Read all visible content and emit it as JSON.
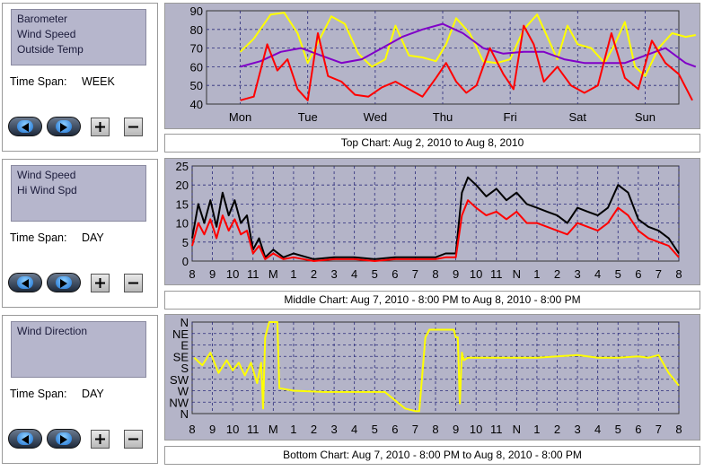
{
  "panels": [
    {
      "series": [
        "Barometer",
        "Wind Speed",
        "Outside Temp"
      ],
      "time_span_label": "Time Span:",
      "time_span_value": "WEEK"
    },
    {
      "series": [
        "Wind Speed",
        "Hi Wind Spd"
      ],
      "time_span_label": "Time Span:",
      "time_span_value": "DAY"
    },
    {
      "series": [
        "Wind Direction"
      ],
      "time_span_label": "Time Span:",
      "time_span_value": "DAY"
    }
  ],
  "captions": {
    "top": "Top Chart:  Aug 2, 2010  to  Aug 8, 2010",
    "middle": "Middle Chart:  Aug 7, 2010 - 8:00 PM  to  Aug 8, 2010 - 8:00 PM",
    "bottom": "Bottom Chart:  Aug 7, 2010 - 8:00 PM  to  Aug 8, 2010 - 8:00 PM"
  },
  "colors": {
    "chart_bg": "#b4b4c8",
    "grid": "#2a2a7a",
    "red": "#ff0000",
    "purple": "#8000c8",
    "yellow": "#ffff00",
    "black": "#000000"
  },
  "chart_data": [
    {
      "type": "line",
      "x_tick_labels": [
        "Mon",
        "Tue",
        "Wed",
        "Thu",
        "Fri",
        "Sat",
        "Sun"
      ],
      "y_ticks": [
        40,
        50,
        60,
        70,
        80,
        90
      ],
      "ylim": [
        40,
        90
      ],
      "grid": true,
      "series": [
        {
          "color": "#ffff00",
          "x": [
            0,
            0.2,
            0.45,
            0.65,
            0.85,
            1.0,
            1.15,
            1.35,
            1.55,
            1.75,
            1.95,
            2.15,
            2.3,
            2.5,
            2.7,
            2.9,
            3.05,
            3.2,
            3.4,
            3.6,
            3.8,
            4.0,
            4.2,
            4.4,
            4.55,
            4.7,
            4.85,
            5.0,
            5.2,
            5.4,
            5.55,
            5.7,
            5.85,
            6.0,
            6.2,
            6.4,
            6.6,
            6.75
          ],
          "y": [
            68,
            75,
            88,
            89,
            78,
            62,
            73,
            87,
            83,
            67,
            60,
            64,
            82,
            66,
            65,
            63,
            72,
            86,
            78,
            63,
            62,
            64,
            80,
            88,
            76,
            64,
            82,
            72,
            70,
            62,
            72,
            84,
            60,
            55,
            70,
            78,
            76,
            77
          ]
        },
        {
          "color": "#8000c8",
          "x": [
            0,
            0.3,
            0.6,
            0.9,
            1.2,
            1.5,
            1.8,
            2.1,
            2.4,
            2.7,
            3.0,
            3.3,
            3.6,
            3.9,
            4.2,
            4.5,
            4.8,
            5.1,
            5.4,
            5.7,
            6.0,
            6.3,
            6.6,
            6.75
          ],
          "y": [
            60,
            63,
            68,
            70,
            66,
            62,
            64,
            70,
            76,
            80,
            83,
            78,
            70,
            67,
            68,
            68,
            64,
            62,
            62,
            62,
            66,
            70,
            62,
            60
          ]
        },
        {
          "color": "#ff0000",
          "x": [
            0,
            0.2,
            0.4,
            0.55,
            0.7,
            0.85,
            1.0,
            1.15,
            1.3,
            1.5,
            1.7,
            1.9,
            2.1,
            2.3,
            2.5,
            2.7,
            2.9,
            3.05,
            3.2,
            3.35,
            3.5,
            3.7,
            3.9,
            4.05,
            4.2,
            4.35,
            4.5,
            4.7,
            4.9,
            5.1,
            5.3,
            5.5,
            5.7,
            5.9,
            6.1,
            6.3,
            6.5,
            6.7
          ],
          "y": [
            42,
            44,
            72,
            58,
            64,
            48,
            42,
            78,
            55,
            52,
            45,
            44,
            49,
            52,
            48,
            44,
            54,
            62,
            52,
            46,
            50,
            70,
            56,
            48,
            82,
            72,
            52,
            60,
            50,
            46,
            50,
            78,
            54,
            48,
            74,
            62,
            56,
            42
          ]
        }
      ]
    },
    {
      "type": "line",
      "x_tick_labels": [
        "8",
        "9",
        "10",
        "11",
        "M",
        "1",
        "2",
        "3",
        "4",
        "5",
        "6",
        "7",
        "8",
        "9",
        "10",
        "11",
        "N",
        "1",
        "2",
        "3",
        "4",
        "5",
        "6",
        "7",
        "8"
      ],
      "y_ticks": [
        0,
        5,
        10,
        15,
        20,
        25
      ],
      "ylim": [
        0,
        25
      ],
      "grid": true,
      "series": [
        {
          "color": "#000000",
          "x": [
            0,
            0.3,
            0.6,
            0.9,
            1.2,
            1.5,
            1.8,
            2.1,
            2.4,
            2.7,
            3.0,
            3.3,
            3.6,
            4,
            4.5,
            5,
            6,
            7,
            8,
            9,
            10,
            11,
            12,
            12.5,
            13,
            13.3,
            13.6,
            14,
            14.5,
            15,
            15.5,
            16,
            16.5,
            17,
            17.5,
            18,
            18.5,
            19,
            19.5,
            20,
            20.5,
            21,
            21.5,
            22,
            22.5,
            23,
            23.5,
            24
          ],
          "y": [
            6,
            15,
            10,
            16,
            9,
            18,
            12,
            16,
            10,
            12,
            3,
            6,
            1,
            3,
            1,
            2,
            0.5,
            1,
            1,
            0.5,
            1,
            1,
            1,
            2,
            2,
            18,
            22,
            20,
            17,
            19,
            16,
            18,
            15,
            14,
            13,
            12,
            10,
            14,
            13,
            12,
            14,
            20,
            18,
            11,
            9,
            8,
            6,
            2
          ]
        },
        {
          "color": "#ff0000",
          "x": [
            0,
            0.3,
            0.6,
            0.9,
            1.2,
            1.5,
            1.8,
            2.1,
            2.4,
            2.7,
            3.0,
            3.3,
            3.6,
            4,
            4.5,
            5,
            6,
            7,
            8,
            9,
            10,
            11,
            12,
            12.5,
            13,
            13.3,
            13.6,
            14,
            14.5,
            15,
            15.5,
            16,
            16.5,
            17,
            17.5,
            18,
            18.5,
            19,
            19.5,
            20,
            20.5,
            21,
            21.5,
            22,
            22.5,
            23,
            23.5,
            24
          ],
          "y": [
            4,
            10,
            7,
            11,
            6,
            12,
            8,
            11,
            7,
            8,
            2,
            4,
            0.5,
            2,
            0.5,
            1,
            0,
            0.5,
            0.5,
            0,
            0.5,
            0.5,
            0.5,
            1,
            1,
            12,
            16,
            14,
            12,
            13,
            11,
            13,
            10,
            10,
            9,
            8,
            7,
            10,
            9,
            8,
            10,
            14,
            12,
            8,
            6,
            5,
            4,
            1
          ]
        }
      ]
    },
    {
      "type": "line",
      "x_tick_labels": [
        "8",
        "9",
        "10",
        "11",
        "M",
        "1",
        "2",
        "3",
        "4",
        "5",
        "6",
        "7",
        "8",
        "9",
        "10",
        "11",
        "N",
        "1",
        "2",
        "3",
        "4",
        "5",
        "6",
        "7",
        "8"
      ],
      "y_tick_labels": [
        "N",
        "NW",
        "W",
        "SW",
        "S",
        "SE",
        "E",
        "NE",
        "N"
      ],
      "ylim": [
        0,
        360
      ],
      "grid": true,
      "series": [
        {
          "color": "#ffff00",
          "x": [
            0.1,
            0.5,
            0.9,
            1.3,
            1.7,
            2.0,
            2.3,
            2.6,
            2.9,
            3.2,
            3.4,
            3.5,
            3.6,
            3.8,
            4.0,
            4.1,
            4.2,
            4.3,
            5.0,
            6.5,
            8.0,
            9.5,
            10.5,
            11.0,
            11.2,
            11.5,
            11.7,
            12.0,
            12.3,
            12.6,
            12.9,
            13.0,
            13.1,
            13.2,
            13.3,
            13.4,
            13.6,
            14.0,
            15.0,
            16.0,
            17.0,
            18.0,
            19.0,
            20.0,
            21.0,
            22.0,
            22.5,
            23.0,
            23.5,
            24.0
          ],
          "y": [
            220,
            190,
            240,
            160,
            210,
            170,
            200,
            150,
            200,
            120,
            200,
            20,
            300,
            360,
            360,
            360,
            360,
            100,
            90,
            85,
            85,
            85,
            20,
            10,
            10,
            300,
            330,
            330,
            330,
            330,
            330,
            300,
            300,
            40,
            240,
            210,
            220,
            220,
            220,
            220,
            220,
            225,
            230,
            220,
            220,
            225,
            220,
            230,
            160,
            110
          ]
        }
      ]
    }
  ]
}
